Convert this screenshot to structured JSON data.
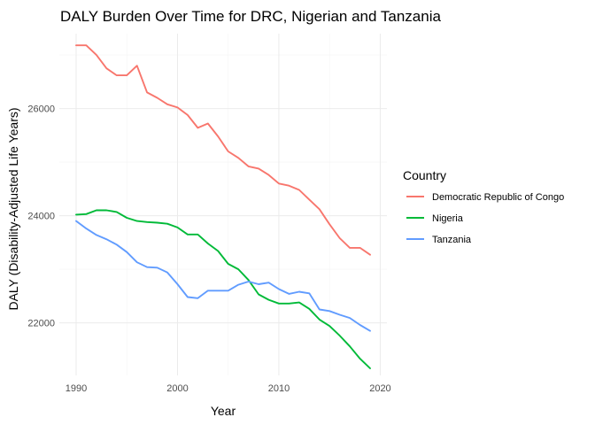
{
  "chart_data": {
    "type": "line",
    "title": "DALY Burden Over Time for DRC, Nigerian and Tanzania",
    "xlabel": "Year",
    "ylabel": "DALY (Disability-Adjusted Life Years)",
    "xlim": [
      1990,
      2019
    ],
    "ylim": [
      21150,
      27200
    ],
    "x_ticks": [
      1990,
      2000,
      2010,
      2020
    ],
    "y_ticks": [
      22000,
      24000,
      26000
    ],
    "grid": true,
    "legend_position": "right",
    "legend_title": "Country",
    "x": [
      1990,
      1991,
      1992,
      1993,
      1994,
      1995,
      1996,
      1997,
      1998,
      1999,
      2000,
      2001,
      2002,
      2003,
      2004,
      2005,
      2006,
      2007,
      2008,
      2009,
      2010,
      2011,
      2012,
      2013,
      2014,
      2015,
      2016,
      2017,
      2018,
      2019
    ],
    "series": [
      {
        "name": "Democratic Republic of Congo",
        "color": "#F8766D",
        "values": [
          27180,
          27180,
          27000,
          26750,
          26620,
          26620,
          26800,
          26300,
          26200,
          26080,
          26020,
          25880,
          25640,
          25720,
          25480,
          25200,
          25080,
          24920,
          24880,
          24760,
          24600,
          24560,
          24480,
          24300,
          24120,
          23840,
          23580,
          23400,
          23400,
          23270
        ]
      },
      {
        "name": "Nigeria",
        "color": "#00BA38",
        "values": [
          24020,
          24030,
          24100,
          24100,
          24070,
          23960,
          23900,
          23880,
          23870,
          23850,
          23780,
          23650,
          23650,
          23480,
          23340,
          23100,
          23000,
          22800,
          22530,
          22430,
          22360,
          22360,
          22380,
          22260,
          22060,
          21940,
          21760,
          21560,
          21330,
          21150
        ]
      },
      {
        "name": "Tanzania",
        "color": "#619CFF",
        "values": [
          23900,
          23760,
          23640,
          23560,
          23460,
          23320,
          23130,
          23040,
          23030,
          22940,
          22720,
          22480,
          22460,
          22600,
          22600,
          22600,
          22710,
          22770,
          22720,
          22750,
          22630,
          22540,
          22580,
          22550,
          22250,
          22220,
          22150,
          22090,
          21960,
          21850
        ]
      }
    ]
  }
}
